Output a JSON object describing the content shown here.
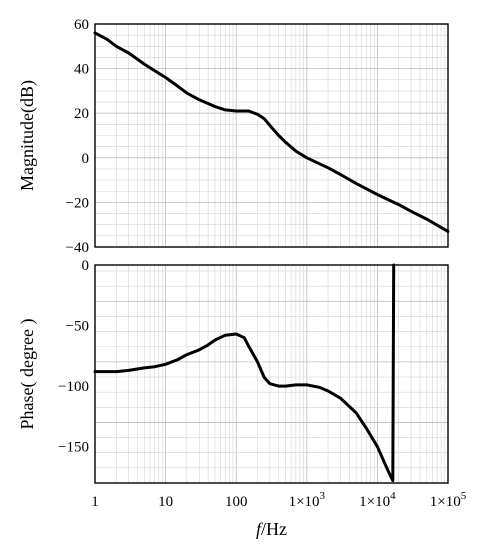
{
  "chart_data": [
    {
      "type": "line",
      "title": "",
      "xlabel_italic": "f",
      "xlabel_rest": "/Hz",
      "ylabel": "Magnitude(dB)",
      "xscale": "log",
      "xlim": [
        1,
        100000
      ],
      "ylim": [
        -40,
        60
      ],
      "yticks": [
        60,
        40,
        20,
        0,
        -20,
        -40
      ],
      "ytick_labels": [
        "60",
        "40",
        "20",
        "0",
        "−20",
        "−40"
      ],
      "grid": true,
      "series": [
        {
          "color": "#000000",
          "x": [
            1,
            1.5,
            2,
            3,
            5,
            7,
            10,
            15,
            20,
            30,
            50,
            70,
            100,
            150,
            200,
            250,
            300,
            400,
            500,
            700,
            1000,
            2000,
            3000,
            5000,
            10000,
            20000,
            30000,
            50000,
            100000
          ],
          "y": [
            56,
            53,
            50,
            47,
            42,
            39,
            36,
            32,
            29,
            26,
            23,
            21.5,
            21,
            21,
            19.5,
            17.5,
            14.5,
            10,
            7,
            3,
            0,
            -4.5,
            -7.5,
            -11.5,
            -16.5,
            -21,
            -24,
            -27.5,
            -33
          ]
        }
      ]
    },
    {
      "type": "line",
      "title": "",
      "xlabel": "",
      "ylabel": "Phase( degree )",
      "xscale": "log",
      "xlim": [
        1,
        100000
      ],
      "ylim": [
        -180,
        0
      ],
      "yticks": [
        0,
        -50,
        -100,
        -150
      ],
      "ytick_labels": [
        "0",
        "−50",
        "−100",
        "−150"
      ],
      "grid": true,
      "series": [
        {
          "color": "#000000",
          "x": [
            1,
            2,
            3,
            5,
            7,
            10,
            15,
            20,
            30,
            40,
            50,
            70,
            100,
            130,
            150,
            200,
            250,
            300,
            400,
            500,
            700,
            1000,
            1500,
            2000,
            3000,
            5000,
            7000,
            10000,
            13000,
            15000,
            16500,
            16500,
            17000
          ],
          "y": [
            -88,
            -88,
            -87,
            -85,
            -84,
            -82,
            -78,
            -74,
            -70,
            -66,
            -62,
            -58,
            -57,
            -60,
            -67,
            -80,
            -93,
            -98,
            -100,
            -100,
            -99,
            -99,
            -101,
            -104,
            -110,
            -122,
            -135,
            -150,
            -165,
            -173,
            -178,
            -178,
            0
          ]
        }
      ]
    }
  ],
  "x_tick_labels": [
    {
      "value": 1,
      "base": "1",
      "exp": ""
    },
    {
      "value": 10,
      "base": "10",
      "exp": ""
    },
    {
      "value": 100,
      "base": "100",
      "exp": ""
    },
    {
      "value": 1000,
      "base": "1×10",
      "exp": "3"
    },
    {
      "value": 10000,
      "base": "1×10",
      "exp": "4"
    },
    {
      "value": 100000,
      "base": "1×10",
      "exp": "5"
    }
  ]
}
